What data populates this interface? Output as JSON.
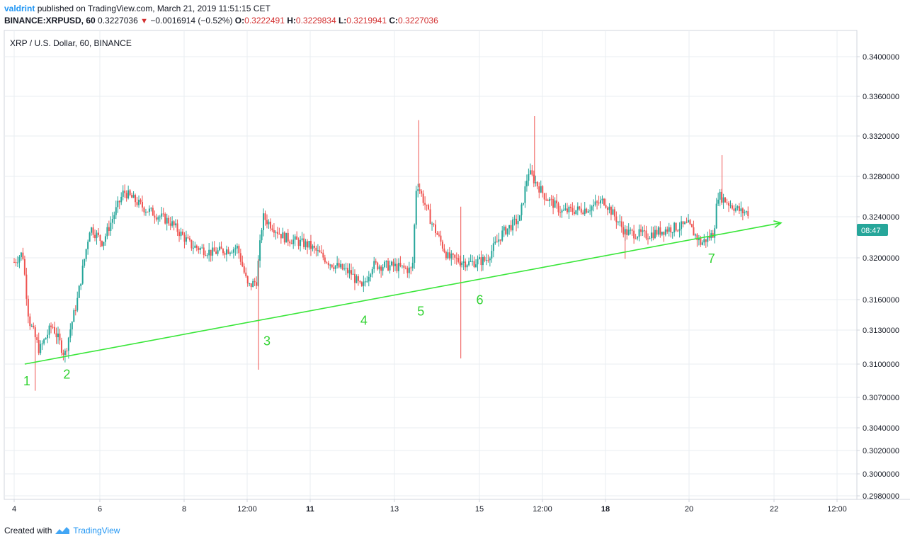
{
  "header": {
    "author": "valdrint",
    "published_text": "published on TradingView.com, March 21, 2019 11:51:15 CET",
    "symbol": "BINANCE:XRPUSD, 60",
    "last": "0.3227036",
    "change": "−0.0016914 (−0.52%)",
    "o_label": "O:",
    "o_value": "0.3222491",
    "h_label": "H:",
    "h_value": "0.3229834",
    "l_label": "L:",
    "l_value": "0.3219941",
    "c_label": "C:",
    "c_value": "0.3227036"
  },
  "footer": {
    "created_with": "Created with",
    "brand": "TradingView"
  },
  "colors": {
    "up": "#26a69a",
    "down": "#ef5350",
    "trend": "#39e639",
    "label": "#32d332",
    "grid": "#e9edf2",
    "axis": "#d1d4dc",
    "price_tag": "#26a69a"
  },
  "chart_data": {
    "type": "candlestick",
    "title": "XRP / U.S. Dollar, 60, BINANCE",
    "price_axis_labels": [
      "0.3400000",
      "0.3360000",
      "0.3320000",
      "0.3280000",
      "0.3240000",
      "0.3200000",
      "0.3160000",
      "0.3130000",
      "0.3100000",
      "0.3070000",
      "0.3040000",
      "0.3020000",
      "0.3000000",
      "0.2980000"
    ],
    "price_axis_values": [
      0.34,
      0.336,
      0.332,
      0.328,
      0.324,
      0.32,
      0.316,
      0.313,
      0.31,
      0.307,
      0.304,
      0.302,
      0.3,
      0.298
    ],
    "current_time_tag": "08:47",
    "time_axis_labels": [
      {
        "label": "4",
        "bold": false
      },
      {
        "label": "6",
        "bold": false
      },
      {
        "label": "8",
        "bold": false
      },
      {
        "label": "12:00",
        "bold": false
      },
      {
        "label": "11",
        "bold": true
      },
      {
        "label": "13",
        "bold": false
      },
      {
        "label": "15",
        "bold": false
      },
      {
        "label": "12:00",
        "bold": false
      },
      {
        "label": "18",
        "bold": true
      },
      {
        "label": "20",
        "bold": false
      },
      {
        "label": "22",
        "bold": false
      },
      {
        "label": "12:00",
        "bold": false
      }
    ],
    "trendline": {
      "start": {
        "day": 4.25,
        "price": 0.31
      },
      "end": {
        "day": 22.2,
        "price": 0.3234
      }
    },
    "touch_points": [
      {
        "label": "1",
        "day": 4.25,
        "price": 0.31
      },
      {
        "label": "2",
        "day": 5.2,
        "price": 0.3106
      },
      {
        "label": "3",
        "day": 9.95,
        "price": 0.3136
      },
      {
        "label": "4",
        "day": 12.25,
        "price": 0.3156
      },
      {
        "label": "5",
        "day": 13.6,
        "price": 0.3165
      },
      {
        "label": "6",
        "day": 15.0,
        "price": 0.3176
      },
      {
        "label": "7",
        "day": 20.5,
        "price": 0.3216
      }
    ],
    "price_path": [
      {
        "day": 4.0,
        "price": 0.3196
      },
      {
        "day": 4.2,
        "price": 0.3205
      },
      {
        "day": 4.35,
        "price": 0.314
      },
      {
        "day": 4.6,
        "price": 0.3112
      },
      {
        "day": 4.9,
        "price": 0.3135
      },
      {
        "day": 5.2,
        "price": 0.3108
      },
      {
        "day": 5.5,
        "price": 0.316
      },
      {
        "day": 5.8,
        "price": 0.323
      },
      {
        "day": 6.1,
        "price": 0.3215
      },
      {
        "day": 6.6,
        "price": 0.3265
      },
      {
        "day": 7.1,
        "price": 0.3248
      },
      {
        "day": 7.7,
        "price": 0.3235
      },
      {
        "day": 8.2,
        "price": 0.3212
      },
      {
        "day": 8.7,
        "price": 0.3205
      },
      {
        "day": 9.3,
        "price": 0.321
      },
      {
        "day": 9.55,
        "price": 0.3172
      },
      {
        "day": 9.75,
        "price": 0.3178
      },
      {
        "day": 9.9,
        "price": 0.324
      },
      {
        "day": 10.4,
        "price": 0.322
      },
      {
        "day": 11.0,
        "price": 0.3212
      },
      {
        "day": 11.5,
        "price": 0.3195
      },
      {
        "day": 12.0,
        "price": 0.3185
      },
      {
        "day": 12.25,
        "price": 0.317
      },
      {
        "day": 12.5,
        "price": 0.3193
      },
      {
        "day": 13.0,
        "price": 0.3192
      },
      {
        "day": 13.45,
        "price": 0.3188
      },
      {
        "day": 13.55,
        "price": 0.3275
      },
      {
        "day": 13.9,
        "price": 0.3235
      },
      {
        "day": 14.3,
        "price": 0.32
      },
      {
        "day": 14.8,
        "price": 0.3195
      },
      {
        "day": 15.2,
        "price": 0.3198
      },
      {
        "day": 15.6,
        "price": 0.3225
      },
      {
        "day": 16.0,
        "price": 0.3238
      },
      {
        "day": 16.2,
        "price": 0.3285
      },
      {
        "day": 16.6,
        "price": 0.326
      },
      {
        "day": 17.0,
        "price": 0.3245
      },
      {
        "day": 17.6,
        "price": 0.3248
      },
      {
        "day": 18.0,
        "price": 0.3256
      },
      {
        "day": 18.5,
        "price": 0.3225
      },
      {
        "day": 19.0,
        "price": 0.3222
      },
      {
        "day": 19.5,
        "price": 0.3228
      },
      {
        "day": 20.0,
        "price": 0.3232
      },
      {
        "day": 20.3,
        "price": 0.3214
      },
      {
        "day": 20.6,
        "price": 0.3224
      },
      {
        "day": 20.7,
        "price": 0.3262
      },
      {
        "day": 21.0,
        "price": 0.3252
      },
      {
        "day": 21.25,
        "price": 0.3245
      },
      {
        "day": 21.45,
        "price": 0.3244
      }
    ],
    "spike_wicks": [
      {
        "day": 4.5,
        "low": 0.3076
      },
      {
        "day": 9.8,
        "low": 0.3095
      },
      {
        "day": 13.6,
        "high": 0.3336
      },
      {
        "day": 14.6,
        "low": 0.3105
      },
      {
        "day": 14.6,
        "high": 0.325
      },
      {
        "day": 16.35,
        "high": 0.334
      },
      {
        "day": 18.5,
        "low": 0.3199
      },
      {
        "day": 20.8,
        "high": 0.3301
      }
    ]
  }
}
